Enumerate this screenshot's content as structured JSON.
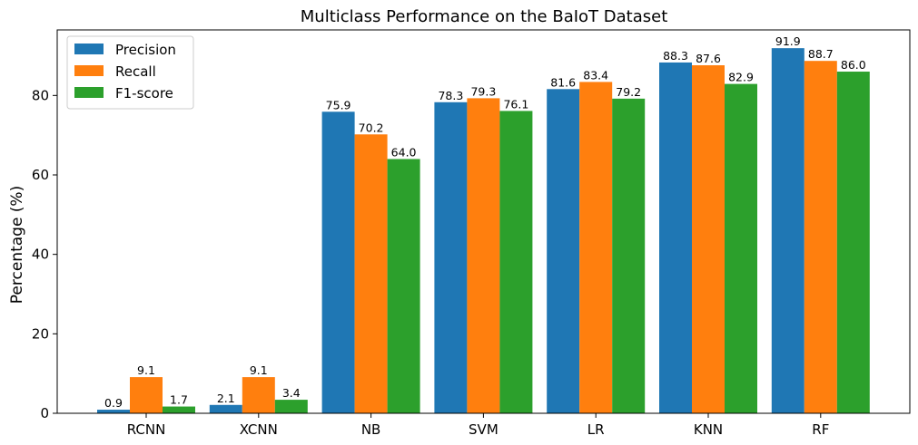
{
  "chart_data": {
    "type": "bar",
    "title": "Multiclass Performance on the BaIoT Dataset",
    "xlabel": "",
    "ylabel": "Percentage (%)",
    "ylim": [
      0,
      96.5
    ],
    "yticks": [
      0,
      20,
      40,
      60,
      80
    ],
    "grid": false,
    "legend_position": "top-left",
    "categories": [
      "RCNN",
      "XCNN",
      "NB",
      "SVM",
      "LR",
      "KNN",
      "RF"
    ],
    "series": [
      {
        "name": "Precision",
        "color": "#1f77b4",
        "values": [
          0.9,
          2.1,
          75.9,
          78.3,
          81.6,
          88.3,
          91.9
        ]
      },
      {
        "name": "Recall",
        "color": "#ff7f0e",
        "values": [
          9.1,
          9.1,
          70.2,
          79.3,
          83.4,
          87.6,
          88.7
        ]
      },
      {
        "name": "F1-score",
        "color": "#2ca02c",
        "values": [
          1.7,
          3.4,
          64.0,
          76.1,
          79.2,
          82.9,
          86.0
        ]
      }
    ]
  }
}
